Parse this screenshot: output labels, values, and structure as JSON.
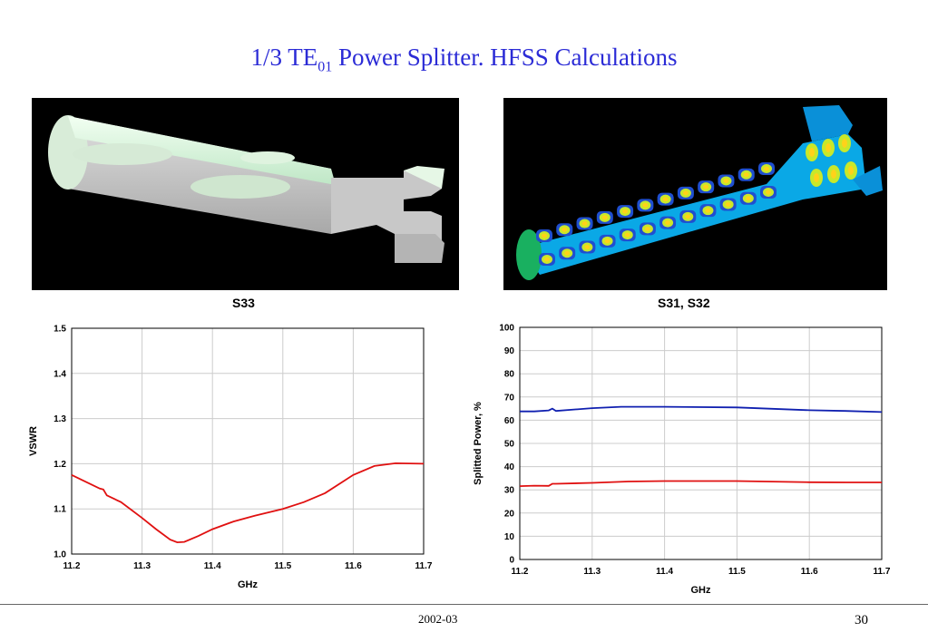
{
  "slide": {
    "title_main": "1/3 TE",
    "title_sub": "01",
    "title_rest": " Power Splitter. HFSS Calculations",
    "footer_date": "2002-03",
    "page_number": "30"
  },
  "images": {
    "left_render": "3D model of power splitter geometry",
    "right_render": "HFSS field pattern in power splitter"
  },
  "chart_data": [
    {
      "type": "line",
      "title": "S33",
      "xlabel": "GHz",
      "ylabel": "VSWR",
      "xlim": [
        11.2,
        11.7
      ],
      "ylim": [
        1.0,
        1.5
      ],
      "xticks": [
        "11.2",
        "11.3",
        "11.4",
        "11.5",
        "11.6",
        "11.7"
      ],
      "yticks": [
        "1.0",
        "1.1",
        "1.2",
        "1.3",
        "1.4",
        "1.5"
      ],
      "grid": true,
      "series": [
        {
          "color": "#e01010",
          "x": [
            11.2,
            11.22,
            11.24,
            11.245,
            11.25,
            11.27,
            11.3,
            11.32,
            11.34,
            11.35,
            11.36,
            11.38,
            11.4,
            11.43,
            11.46,
            11.5,
            11.53,
            11.56,
            11.6,
            11.63,
            11.66,
            11.7
          ],
          "y": [
            1.175,
            1.16,
            1.145,
            1.143,
            1.13,
            1.115,
            1.08,
            1.055,
            1.032,
            1.026,
            1.027,
            1.04,
            1.055,
            1.072,
            1.085,
            1.1,
            1.115,
            1.135,
            1.175,
            1.195,
            1.201,
            1.2
          ]
        }
      ]
    },
    {
      "type": "line",
      "title": "S31, S32",
      "xlabel": "GHz",
      "ylabel": "Splitted Power, %",
      "xlim": [
        11.2,
        11.7
      ],
      "ylim": [
        0,
        100
      ],
      "xticks": [
        "11.2",
        "11.3",
        "11.4",
        "11.5",
        "11.6",
        "11.7"
      ],
      "yticks": [
        "0",
        "10",
        "20",
        "30",
        "40",
        "50",
        "60",
        "70",
        "80",
        "90",
        "100"
      ],
      "grid": true,
      "series": [
        {
          "color": "#1020b0",
          "x": [
            11.2,
            11.22,
            11.24,
            11.245,
            11.25,
            11.3,
            11.34,
            11.4,
            11.5,
            11.6,
            11.65,
            11.7
          ],
          "y": [
            63.8,
            63.8,
            64.2,
            65.0,
            64.0,
            65.2,
            65.8,
            65.8,
            65.5,
            64.3,
            64.0,
            63.5
          ]
        },
        {
          "color": "#e01010",
          "x": [
            11.2,
            11.22,
            11.24,
            11.245,
            11.25,
            11.3,
            11.35,
            11.4,
            11.5,
            11.6,
            11.65,
            11.7
          ],
          "y": [
            31.6,
            31.8,
            31.7,
            32.6,
            32.6,
            33.0,
            33.6,
            33.8,
            33.8,
            33.3,
            33.2,
            33.2
          ]
        }
      ]
    }
  ]
}
